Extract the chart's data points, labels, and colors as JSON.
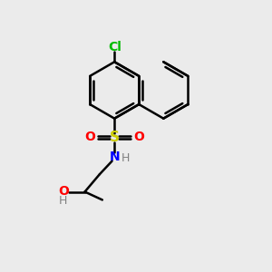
{
  "background_color": "#ebebeb",
  "bond_color": "#000000",
  "bond_width": 1.8,
  "atom_colors": {
    "Cl": "#00bb00",
    "S": "#cccc00",
    "O": "#ff0000",
    "N": "#0000ff",
    "H": "#808080"
  },
  "scale": 1.0
}
